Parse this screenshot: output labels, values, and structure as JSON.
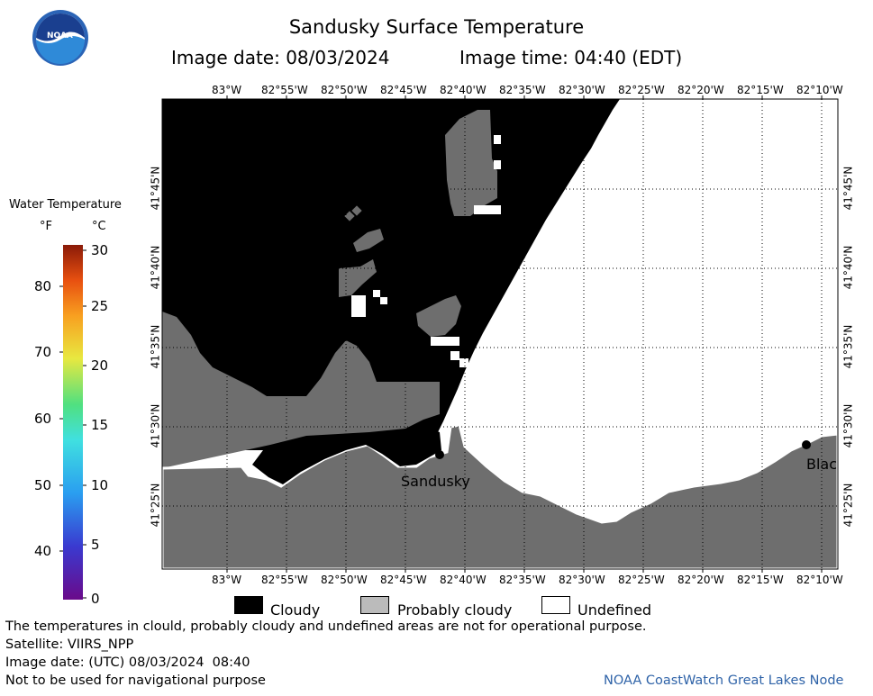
{
  "title": "Sandusky Surface Temperature",
  "image_date_label": "Image date: 08/03/2024",
  "image_time_label": "Image time: 04:40 (EDT)",
  "logo_text": "NOAA",
  "longitude_labels": [
    "83°W",
    "82°55'W",
    "82°50'W",
    "82°45'W",
    "82°40'W",
    "82°35'W",
    "82°30'W",
    "82°25'W",
    "82°20'W",
    "82°15'W",
    "82°10'W"
  ],
  "latitude_labels": [
    "41°45'N",
    "41°40'N",
    "41°35'N",
    "41°30'N",
    "41°25'N"
  ],
  "place_labels": {
    "sandusky": "Sandusky",
    "blac": "Blac"
  },
  "legend": {
    "title": "Water Temperature",
    "unit_f": "°F",
    "unit_c": "°C",
    "fahrenheit_ticks": [
      "80",
      "70",
      "60",
      "50",
      "40"
    ],
    "celsius_ticks": [
      "30",
      "25",
      "20",
      "15",
      "10",
      "5",
      "0"
    ]
  },
  "key": {
    "cloudy": "Cloudy",
    "probably_cloudy": "Probably cloudy",
    "undefined": "Undefined",
    "colors": {
      "cloudy": "#000000",
      "probably_cloudy": "#bbbbbb",
      "undefined": "#ffffff",
      "land": "#6e6e6e"
    }
  },
  "footer": {
    "disclaimer": "The temperatures in clould, probably cloudy and undefined areas are not for operational purpose.",
    "satellite": "Satellite: VIIRS_NPP",
    "utc_date": "Image date: (UTC) 08/03/2024  08:40",
    "navigation": "Not to be used for navigational purpose",
    "credit": "NOAA CoastWatch Great Lakes Node"
  }
}
